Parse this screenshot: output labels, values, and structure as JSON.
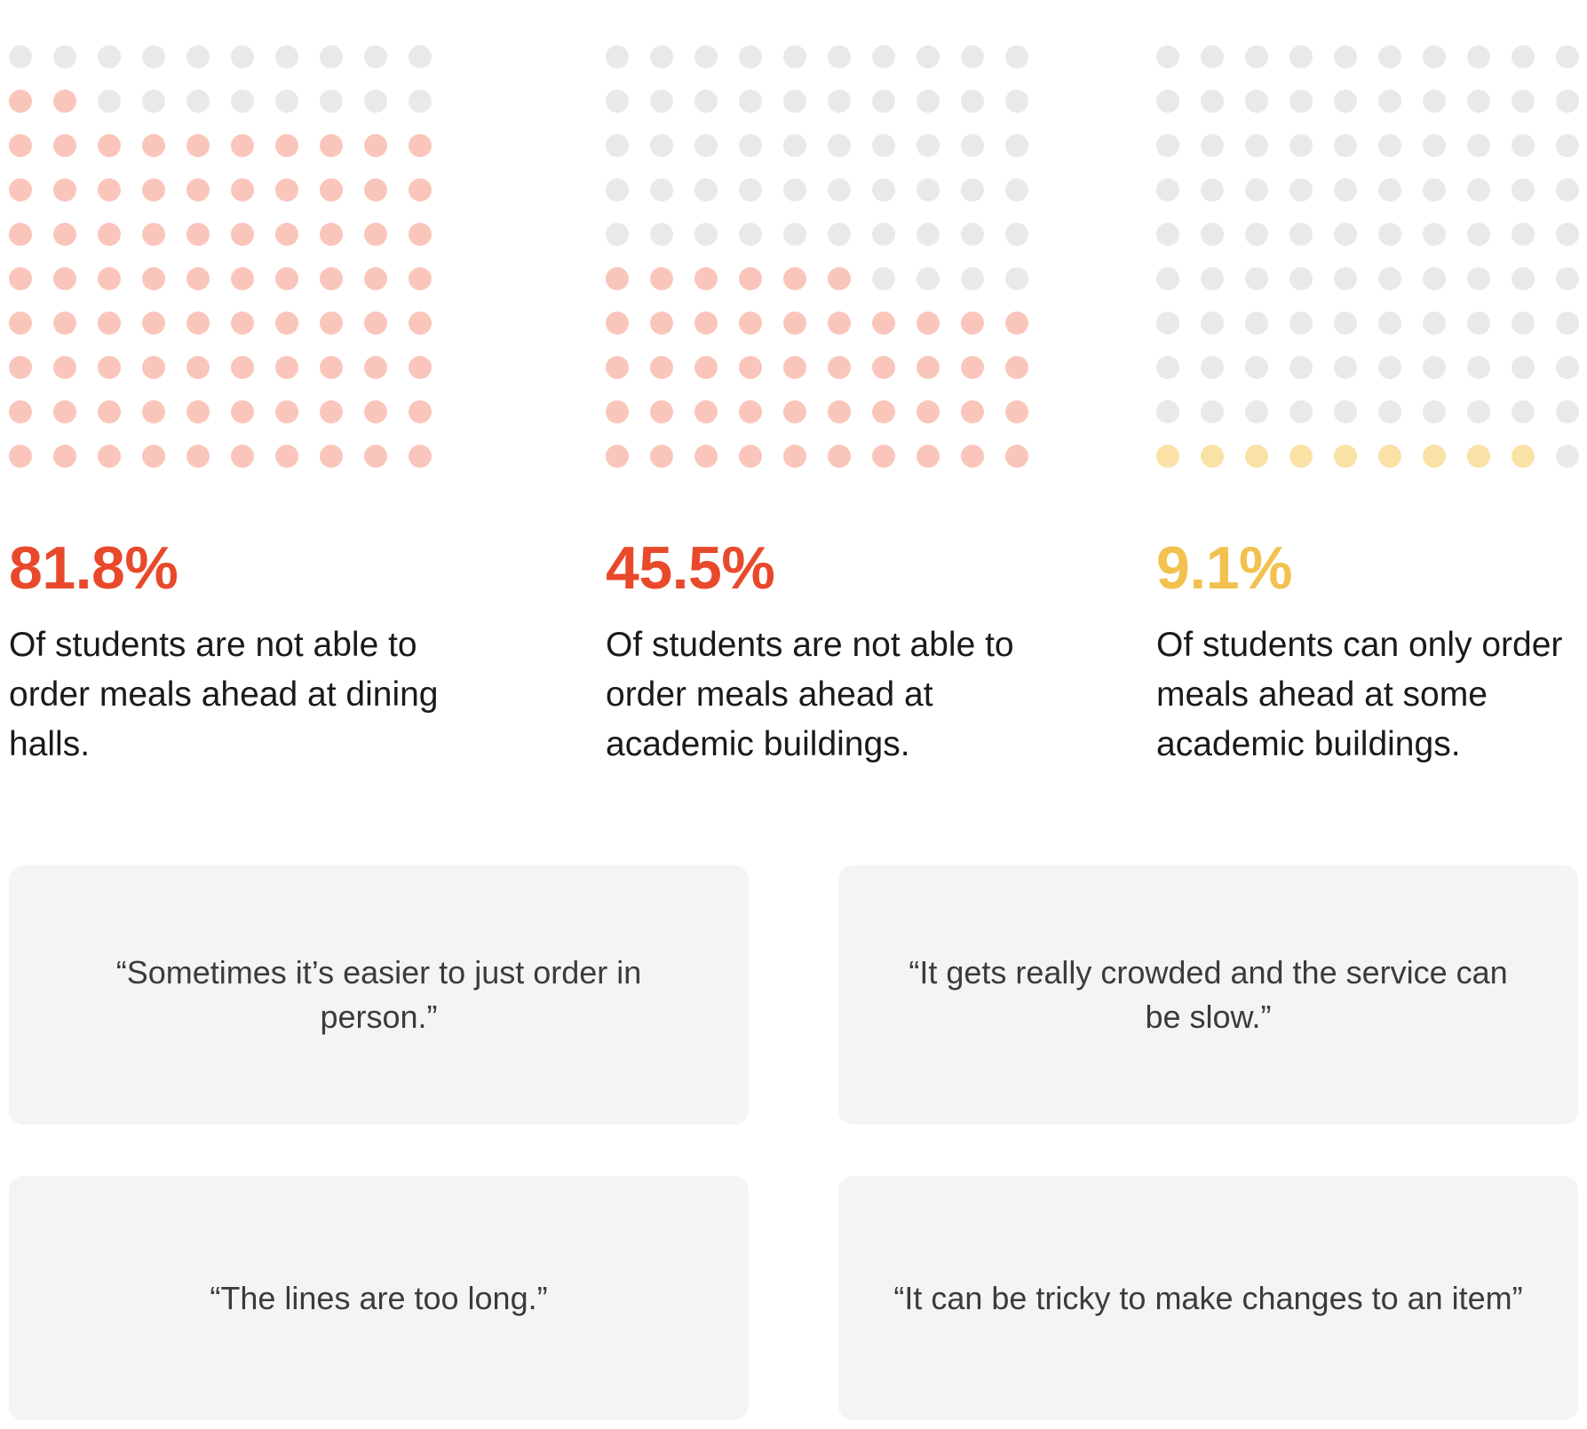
{
  "colors": {
    "accent_red": "#E8492B",
    "accent_gold": "#F2C14F",
    "dot_pink": "#FAC6BB",
    "dot_yellow": "#FAE1A6",
    "dot_empty": "#E9E9E9",
    "card_bg": "#F4F4F5",
    "stat_text": "#1A1A1C",
    "quote_text": "#3B3B3D"
  },
  "chart_data": [
    {
      "type": "waffle",
      "rows": 10,
      "cols": 10,
      "total_dots": 100,
      "filled_dots": 82,
      "fill_from": "bottom-left",
      "percent": 81.8,
      "value_label": "81.8%",
      "description": "Of students are not able to order meals ahead at dining halls.",
      "fill_color": "#FAC6BB",
      "empty_color": "#E9E9E9",
      "value_color": "#E8492B"
    },
    {
      "type": "waffle",
      "rows": 10,
      "cols": 10,
      "total_dots": 100,
      "filled_dots": 46,
      "fill_from": "bottom-left",
      "percent": 45.5,
      "value_label": "45.5%",
      "description": "Of students are not able to order meals ahead at academic buildings.",
      "fill_color": "#FAC6BB",
      "empty_color": "#E9E9E9",
      "value_color": "#E8492B"
    },
    {
      "type": "waffle",
      "rows": 10,
      "cols": 10,
      "total_dots": 100,
      "filled_dots": 9,
      "fill_from": "bottom-left",
      "percent": 9.1,
      "value_label": "9.1%",
      "description": "Of students can only order meals ahead at some academic buildings.",
      "fill_color": "#FAE1A6",
      "empty_color": "#E9E9E9",
      "value_color": "#F2C14F"
    }
  ],
  "quotes": [
    {
      "text": "“Sometimes it’s easier to just order in person.”"
    },
    {
      "text": "“It gets really crowded and the service can be slow.”"
    },
    {
      "text": "“The lines are too long.”"
    },
    {
      "text": "“It can be tricky to make changes to an item”"
    }
  ]
}
